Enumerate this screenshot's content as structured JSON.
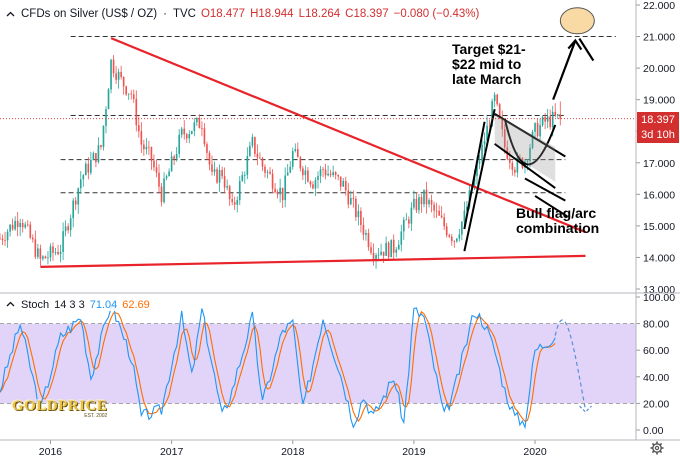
{
  "header": {
    "title": "CFDs on Silver (US$ / OZ)",
    "separator": "·",
    "source": "TVC",
    "open": "O18.477",
    "high": "H18.944",
    "low": "L18.264",
    "close": "C18.397",
    "change": "−0.080 (−0.43%)"
  },
  "last_price": {
    "label": "18.397",
    "countdown": "3d 10h"
  },
  "stoch_header": {
    "name": "Stoch",
    "params": "14 3 3",
    "k_value": "71.04",
    "d_value": "62.69"
  },
  "annotations": {
    "target": [
      "Target $21-",
      "$22 mid to",
      "late March"
    ],
    "pattern": [
      "Bull flag/arc",
      "combination"
    ]
  },
  "logo": {
    "word": "GOLDPRICE",
    "tagline": "EST. 2002"
  },
  "colors": {
    "up": "#26a69a",
    "down": "#ef5350",
    "trend": "#e8232a",
    "stoch_k": "#2196f3",
    "stoch_d": "#ff6d00",
    "stoch_band": "#e1d4f8",
    "last_price": "#d32f2f"
  },
  "chart_data": [
    {
      "type": "candlestick",
      "title": "CFDs on Silver (US$ / OZ)",
      "y_range": [
        13.0,
        22.0
      ],
      "y_ticks": [
        "22.000",
        "21.000",
        "20.000",
        "19.000",
        "18.000",
        "17.000",
        "16.000",
        "15.000",
        "14.000",
        "13.000"
      ],
      "x_ticks": [
        "2016",
        "2017",
        "2018",
        "2019",
        "2020"
      ],
      "x_range": [
        "2015-08",
        "2020-11"
      ],
      "grid": false,
      "last_price": 18.397,
      "levels": [
        {
          "name": "resistance",
          "value": 21.0
        },
        {
          "name": "flag-top",
          "value": 18.5
        },
        {
          "name": "mid",
          "value": 17.1
        },
        {
          "name": "low",
          "value": 16.05
        }
      ],
      "trendlines": [
        {
          "from": [
            "2016-07",
            20.95
          ],
          "to": [
            "2020-06",
            14.8
          ]
        },
        {
          "from": [
            "2015-12",
            13.7
          ],
          "to": [
            "2020-06",
            14.05
          ]
        }
      ],
      "price_path": [
        [
          "2015-08",
          14.6
        ],
        [
          "2015-10",
          15.3
        ],
        [
          "2015-12",
          13.9
        ],
        [
          "2016-02",
          14.3
        ],
        [
          "2016-04",
          16.5
        ],
        [
          "2016-06",
          17.5
        ],
        [
          "2016-07",
          20.2
        ],
        [
          "2016-08",
          19.6
        ],
        [
          "2016-09",
          19.2
        ],
        [
          "2016-10",
          17.6
        ],
        [
          "2016-11",
          17.1
        ],
        [
          "2016-12",
          16.0
        ],
        [
          "2017-02",
          17.9
        ],
        [
          "2017-04",
          18.3
        ],
        [
          "2017-05",
          16.5
        ],
        [
          "2017-06",
          16.7
        ],
        [
          "2017-07",
          15.5
        ],
        [
          "2017-09",
          17.6
        ],
        [
          "2017-10",
          16.9
        ],
        [
          "2017-12",
          16.0
        ],
        [
          "2018-01",
          17.3
        ],
        [
          "2018-03",
          16.4
        ],
        [
          "2018-04",
          16.8
        ],
        [
          "2018-06",
          16.3
        ],
        [
          "2018-07",
          15.6
        ],
        [
          "2018-09",
          14.2
        ],
        [
          "2018-11",
          14.3
        ],
        [
          "2019-01",
          15.6
        ],
        [
          "2019-02",
          15.9
        ],
        [
          "2019-04",
          15.0
        ],
        [
          "2019-05",
          14.6
        ],
        [
          "2019-06",
          15.3
        ],
        [
          "2019-07",
          16.5
        ],
        [
          "2019-09",
          19.0
        ],
        [
          "2019-10",
          17.5
        ],
        [
          "2019-11",
          16.9
        ],
        [
          "2019-12",
          17.1
        ],
        [
          "2020-01",
          18.0
        ],
        [
          "2020-02",
          18.3
        ],
        [
          "2020-03",
          18.4
        ]
      ]
    },
    {
      "type": "line",
      "title": "Stoch 14 3 3",
      "y_range": [
        0,
        100
      ],
      "y_ticks": [
        "100.00",
        "80.00",
        "60.00",
        "40.00",
        "20.00",
        "0.00"
      ],
      "band": [
        20,
        80
      ],
      "series": [
        {
          "name": "%K",
          "color": "#2196f3",
          "last": 71.04
        },
        {
          "name": "%D",
          "color": "#ff6d00",
          "last": 62.69
        }
      ],
      "k_path": [
        [
          "2015-08",
          30
        ],
        [
          "2015-10",
          80
        ],
        [
          "2015-12",
          15
        ],
        [
          "2016-02",
          70
        ],
        [
          "2016-04",
          85
        ],
        [
          "2016-05",
          40
        ],
        [
          "2016-07",
          95
        ],
        [
          "2016-09",
          55
        ],
        [
          "2016-10",
          10
        ],
        [
          "2016-12",
          15
        ],
        [
          "2017-02",
          85
        ],
        [
          "2017-03",
          40
        ],
        [
          "2017-04",
          90
        ],
        [
          "2017-06",
          10
        ],
        [
          "2017-07",
          30
        ],
        [
          "2017-09",
          85
        ],
        [
          "2017-10",
          20
        ],
        [
          "2017-12",
          75
        ],
        [
          "2018-01",
          80
        ],
        [
          "2018-02",
          15
        ],
        [
          "2018-04",
          85
        ],
        [
          "2018-06",
          35
        ],
        [
          "2018-07",
          5
        ],
        [
          "2018-08",
          25
        ],
        [
          "2018-09",
          10
        ],
        [
          "2018-11",
          40
        ],
        [
          "2018-12",
          5
        ],
        [
          "2019-01",
          90
        ],
        [
          "2019-02",
          85
        ],
        [
          "2019-04",
          10
        ],
        [
          "2019-05",
          30
        ],
        [
          "2019-07",
          90
        ],
        [
          "2019-08",
          80
        ],
        [
          "2019-09",
          60
        ],
        [
          "2019-10",
          30
        ],
        [
          "2019-11",
          10
        ],
        [
          "2019-12",
          5
        ],
        [
          "2020-01",
          60
        ],
        [
          "2020-02",
          65
        ],
        [
          "2020-03",
          71
        ]
      ],
      "projection": [
        [
          "2020-03",
          71
        ],
        [
          "2020-04",
          86
        ],
        [
          "2020-05",
          55
        ],
        [
          "2020-06",
          15
        ]
      ]
    }
  ]
}
